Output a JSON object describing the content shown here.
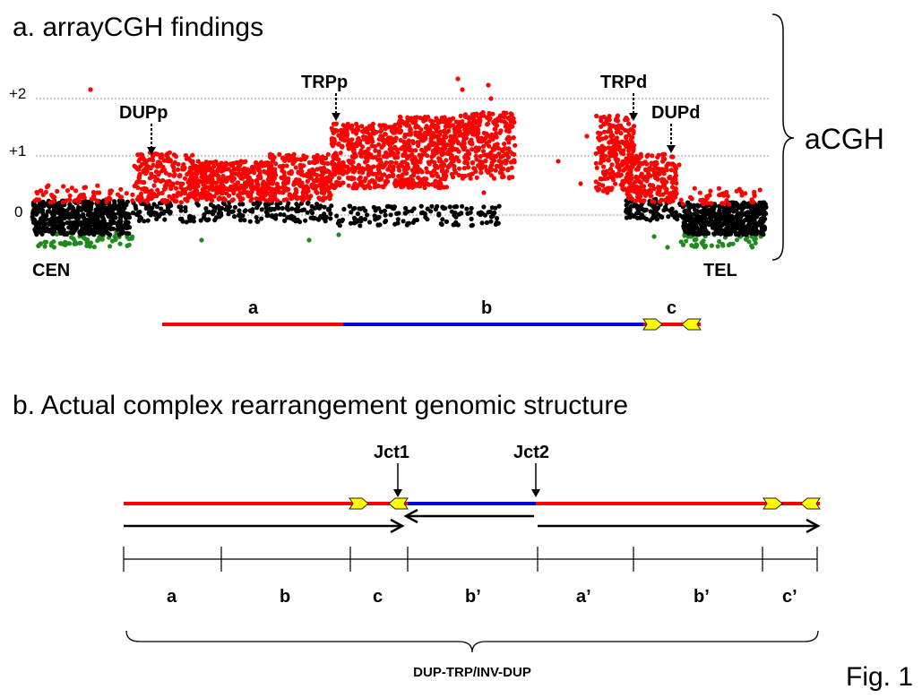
{
  "panel_a": {
    "title": "a. arrayCGH findings",
    "y_ticks": [
      "+2",
      "+1",
      "0"
    ],
    "markers": [
      "DUPp",
      "TRPp",
      "TRPd",
      "DUPd"
    ],
    "cen": "CEN",
    "tel": "TEL",
    "brace_label": "aCGH",
    "segments": [
      "a",
      "b",
      "c"
    ]
  },
  "panel_b": {
    "title": "b. Actual complex rearrangement genomic structure",
    "junctions": [
      "Jct1",
      "Jct2"
    ],
    "segments": [
      "a",
      "b",
      "c",
      "b’",
      "a’",
      "b’",
      "c’"
    ],
    "brace_label": "DUP-TRP/INV-DUP"
  },
  "fig_label": "Fig. 1",
  "colors": {
    "gain": "#ff0000",
    "neutral": "#000000",
    "loss": "#1f8a1f",
    "inverted": "#0000dd",
    "repeat": "#ffff00"
  }
}
